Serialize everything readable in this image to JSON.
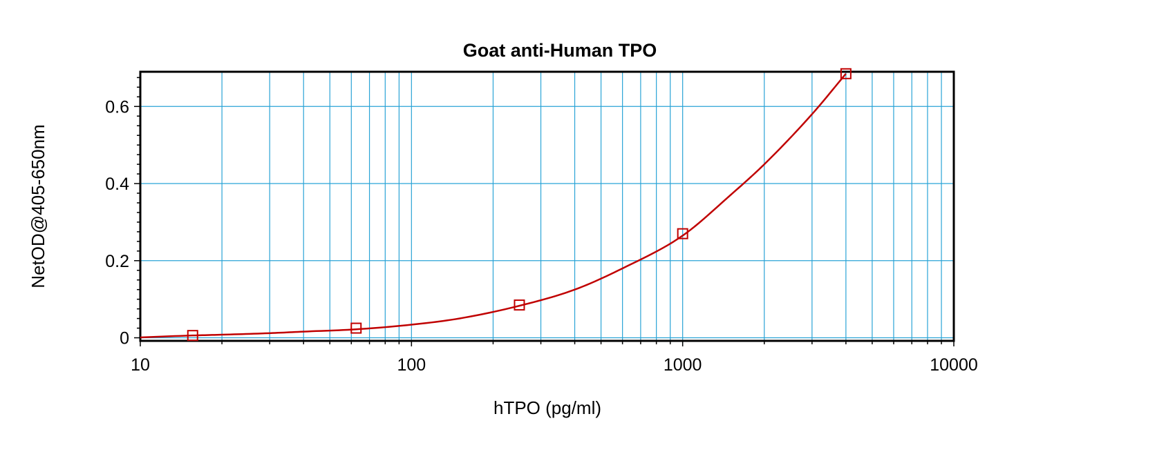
{
  "chart_data": {
    "type": "scatter",
    "title": "Goat anti-Human TPO",
    "xlabel": "hTPO (pg/ml)",
    "ylabel": "NetOD@405-650nm",
    "x_scale": "log",
    "xlim": [
      10,
      10000
    ],
    "ylim": [
      -0.008,
      0.69
    ],
    "x_ticks": [
      10,
      100,
      1000,
      10000
    ],
    "x_tick_labels": [
      "10",
      "100",
      "1000",
      "10000"
    ],
    "y_ticks": [
      0,
      0.2,
      0.4,
      0.6
    ],
    "y_tick_labels": [
      "0",
      "0.2",
      "0.4",
      "0.6"
    ],
    "grid": true,
    "legend": "none",
    "series": [
      {
        "marker": "open-square",
        "color": "#c00000",
        "x": [
          15.6,
          62.5,
          250,
          1000,
          4000
        ],
        "y": [
          0.006,
          0.025,
          0.085,
          0.27,
          0.685
        ]
      }
    ],
    "fit_curve": {
      "style": "line",
      "color": "#c00000",
      "x": [
        10,
        15.6,
        20,
        30,
        40,
        62.5,
        100,
        150,
        250,
        400,
        600,
        1000,
        1500,
        2000,
        3000,
        4000
      ],
      "y": [
        0.001,
        0.006,
        0.008,
        0.012,
        0.016,
        0.022,
        0.034,
        0.05,
        0.083,
        0.125,
        0.18,
        0.265,
        0.37,
        0.45,
        0.58,
        0.685
      ]
    },
    "colors": {
      "grid": "#29a3d6",
      "frame": "#000000",
      "series": "#c00000"
    }
  }
}
